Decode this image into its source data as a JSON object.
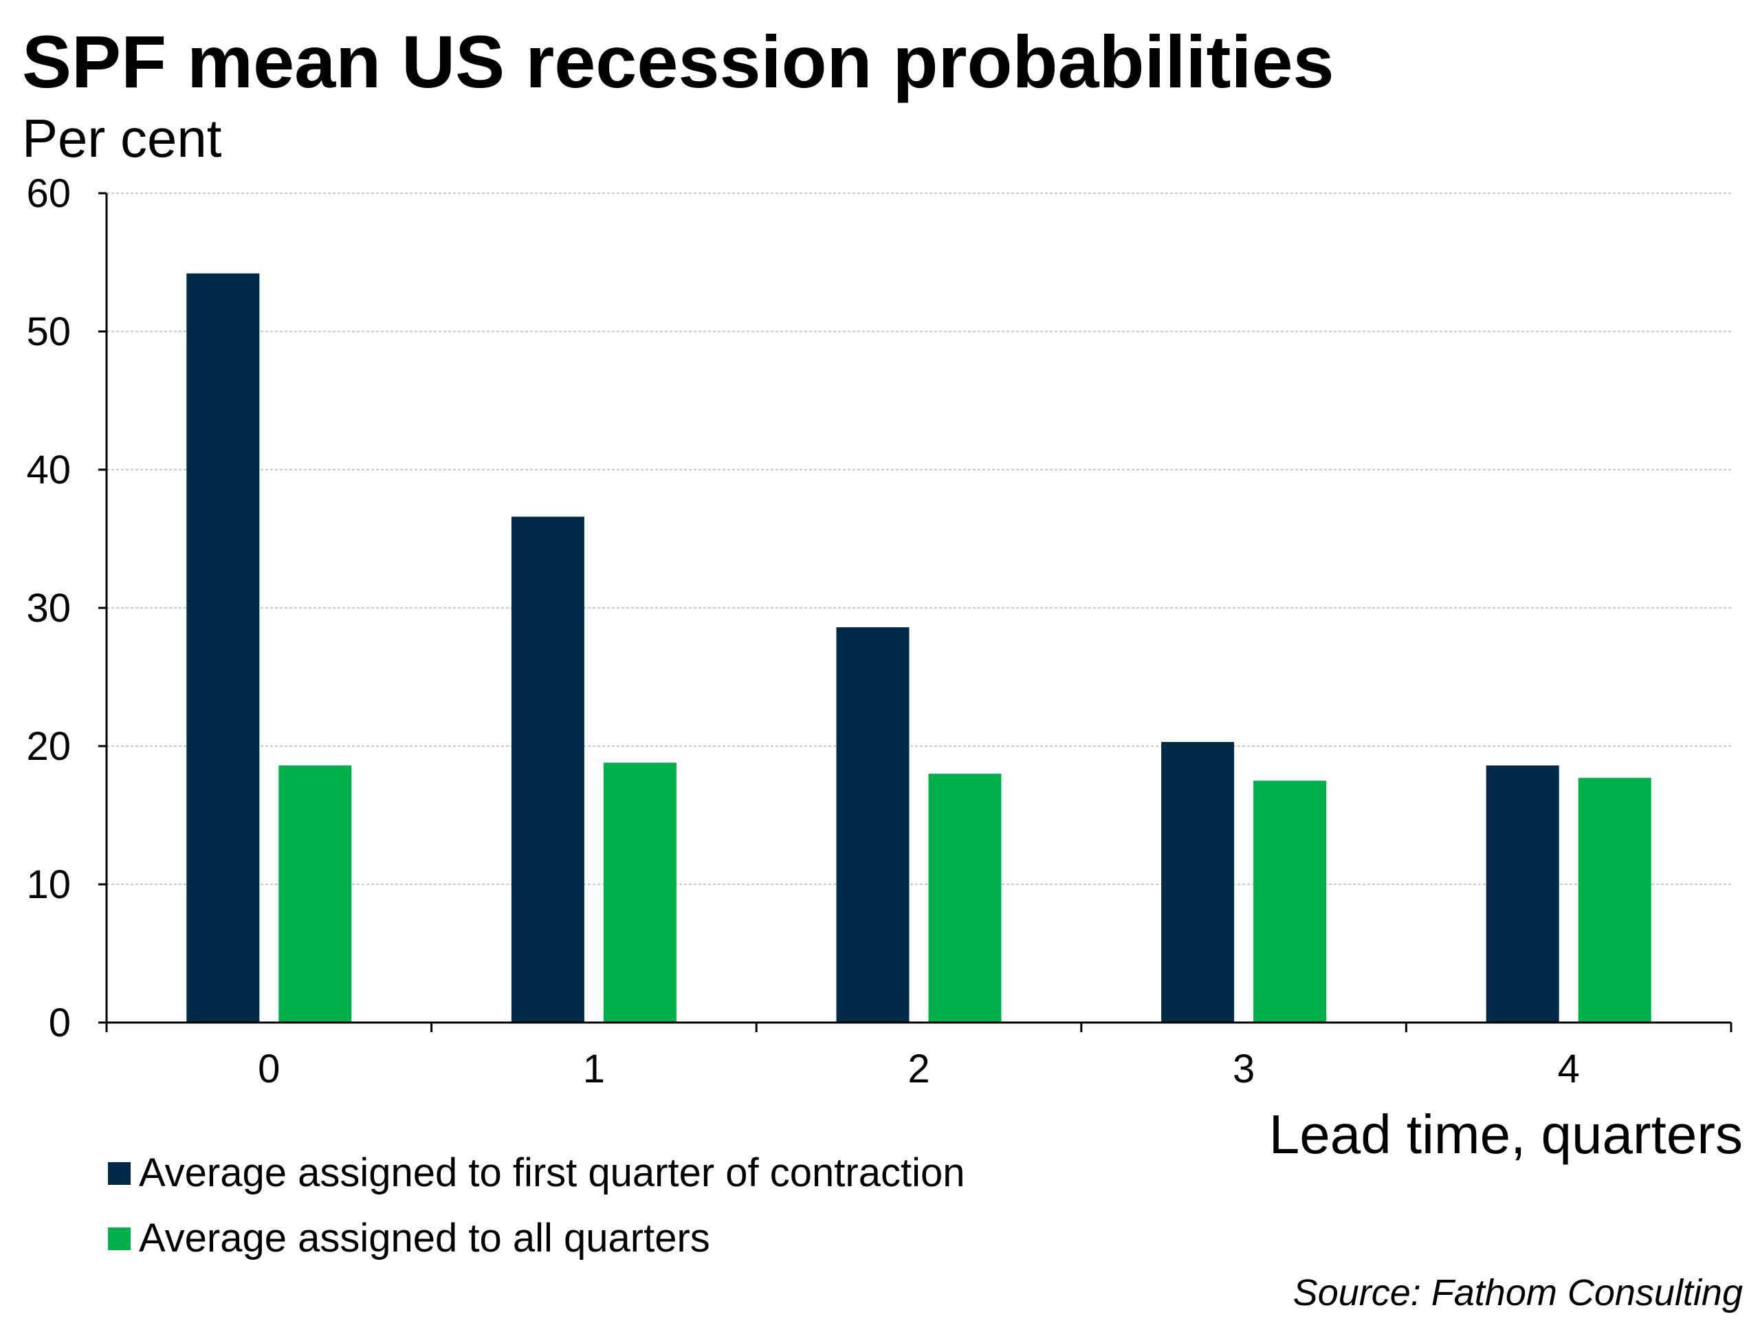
{
  "chart_data": {
    "type": "bar",
    "title": "SPF mean US recession probabilities",
    "ylabel": "Per cent",
    "xlabel": "Lead time, quarters",
    "categories": [
      "0",
      "1",
      "2",
      "3",
      "4"
    ],
    "ylim": [
      0,
      60
    ],
    "yticks": [
      0,
      10,
      20,
      30,
      40,
      50,
      60
    ],
    "ytick_labels": [
      "0",
      "10",
      "20",
      "30",
      "40",
      "50",
      "60"
    ],
    "grid": true,
    "legend_position": "bottom-left",
    "series": [
      {
        "name": "Average assigned to first quarter of contraction",
        "color": "#002a48",
        "values": [
          54.2,
          36.6,
          28.6,
          20.3,
          18.6
        ]
      },
      {
        "name": "Average assigned to all quarters",
        "color": "#00b04a",
        "values": [
          18.6,
          18.8,
          18.0,
          17.5,
          17.7
        ]
      }
    ],
    "source": "Source: Fathom Consulting"
  }
}
